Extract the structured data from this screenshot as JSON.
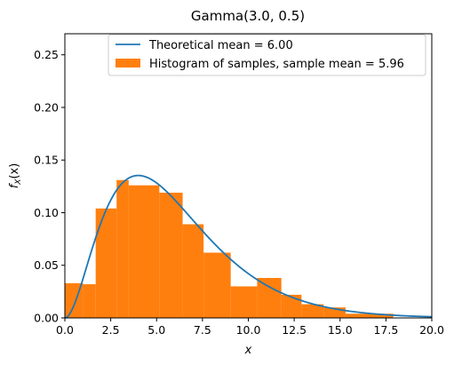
{
  "chart_data": {
    "type": "bar",
    "title": "Gamma(3.0, 0.5)",
    "xlabel": "x",
    "ylabel": "f_X(x)",
    "xlim": [
      0.0,
      20.0
    ],
    "ylim": [
      0.0,
      0.27
    ],
    "grid": false,
    "legend_placement": "top-right",
    "x_ticks": [
      0.0,
      2.5,
      5.0,
      7.5,
      10.0,
      12.5,
      15.0,
      17.5,
      20.0
    ],
    "x_tick_labels": [
      "0.0",
      "2.5",
      "5.0",
      "7.5",
      "10.0",
      "12.5",
      "15.0",
      "17.5",
      "20.0"
    ],
    "y_ticks": [
      0.0,
      0.05,
      0.1,
      0.15,
      0.2,
      0.25
    ],
    "y_tick_labels": [
      "0.00",
      "0.05",
      "0.10",
      "0.15",
      "0.20",
      "0.25"
    ],
    "series": [
      {
        "name": "Theoretical mean = 6.00",
        "kind": "line",
        "color": "#1f77b4",
        "curve": "gamma_pdf",
        "shape": 3.0,
        "scale": 2.0
      },
      {
        "name": "Histogram of samples, sample mean = 5.96",
        "kind": "histogram",
        "color": "#ff7f0e",
        "bins": [
          {
            "x0": 0.0,
            "x1": 0.99,
            "value": 0.033
          },
          {
            "x0": 0.99,
            "x1": 1.68,
            "value": 0.032
          },
          {
            "x0": 1.68,
            "x1": 2.82,
            "value": 0.104
          },
          {
            "x0": 2.82,
            "x1": 3.48,
            "value": 0.131
          },
          {
            "x0": 3.48,
            "x1": 5.15,
            "value": 0.126
          },
          {
            "x0": 5.15,
            "x1": 6.42,
            "value": 0.119
          },
          {
            "x0": 6.42,
            "x1": 7.56,
            "value": 0.089
          },
          {
            "x0": 7.56,
            "x1": 9.04,
            "value": 0.062
          },
          {
            "x0": 9.04,
            "x1": 10.48,
            "value": 0.03
          },
          {
            "x0": 10.48,
            "x1": 11.8,
            "value": 0.038
          },
          {
            "x0": 11.8,
            "x1": 12.9,
            "value": 0.022
          },
          {
            "x0": 12.9,
            "x1": 14.1,
            "value": 0.013
          },
          {
            "x0": 14.1,
            "x1": 15.3,
            "value": 0.01
          },
          {
            "x0": 15.3,
            "x1": 17.9,
            "value": 0.004
          }
        ]
      }
    ]
  }
}
